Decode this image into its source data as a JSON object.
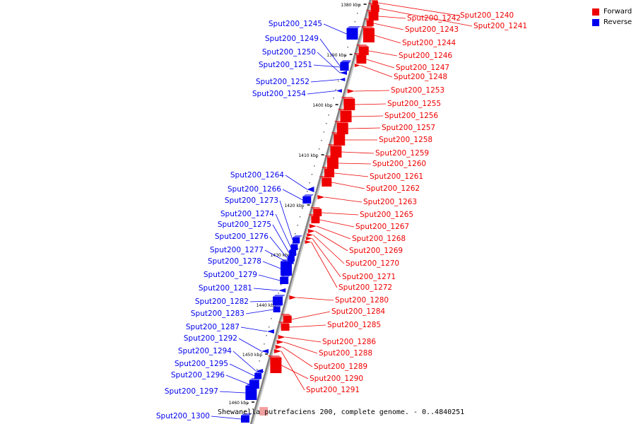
{
  "caption": "Shewanella putrefaciens 200, complete genome. - 0..4840251",
  "legend": [
    {
      "label": "Forward",
      "color": "#ee0000"
    },
    {
      "label": "Reverse",
      "color": "#0000ee"
    }
  ],
  "colors": {
    "forward": "#ee0000",
    "reverse": "#0000ee",
    "backbone": "#808080",
    "truncated": "#f4a0a0"
  },
  "ticks": [
    "1380 kbp",
    "1390 kbp",
    "1400 kbp",
    "1410 kbp",
    "1420 kbp",
    "1430 kbp",
    "1440 kbp",
    "1450 kbp",
    "1460 kbp"
  ],
  "genes": [
    {
      "label": "Sput200_1240",
      "strand": "forward"
    },
    {
      "label": "Sput200_1241",
      "strand": "forward"
    },
    {
      "label": "Sput200_1242",
      "strand": "forward"
    },
    {
      "label": "Sput200_1243",
      "strand": "forward"
    },
    {
      "label": "Sput200_1244",
      "strand": "forward"
    },
    {
      "label": "Sput200_1245",
      "strand": "reverse"
    },
    {
      "label": "Sput200_1246",
      "strand": "forward"
    },
    {
      "label": "Sput200_1247",
      "strand": "forward"
    },
    {
      "label": "Sput200_1248",
      "strand": "forward"
    },
    {
      "label": "Sput200_1249",
      "strand": "reverse"
    },
    {
      "label": "Sput200_1250",
      "strand": "reverse"
    },
    {
      "label": "Sput200_1251",
      "strand": "reverse"
    },
    {
      "label": "Sput200_1252",
      "strand": "reverse"
    },
    {
      "label": "Sput200_1253",
      "strand": "forward"
    },
    {
      "label": "Sput200_1254",
      "strand": "reverse"
    },
    {
      "label": "Sput200_1255",
      "strand": "forward"
    },
    {
      "label": "Sput200_1256",
      "strand": "forward"
    },
    {
      "label": "Sput200_1257",
      "strand": "forward"
    },
    {
      "label": "Sput200_1258",
      "strand": "forward"
    },
    {
      "label": "Sput200_1259",
      "strand": "forward"
    },
    {
      "label": "Sput200_1260",
      "strand": "forward"
    },
    {
      "label": "Sput200_1261",
      "strand": "forward"
    },
    {
      "label": "Sput200_1262",
      "strand": "forward"
    },
    {
      "label": "Sput200_1263",
      "strand": "forward"
    },
    {
      "label": "Sput200_1264",
      "strand": "reverse"
    },
    {
      "label": "Sput200_1265",
      "strand": "forward"
    },
    {
      "label": "Sput200_1266",
      "strand": "reverse"
    },
    {
      "label": "Sput200_1267",
      "strand": "forward"
    },
    {
      "label": "Sput200_1268",
      "strand": "forward"
    },
    {
      "label": "Sput200_1269",
      "strand": "forward"
    },
    {
      "label": "Sput200_1270",
      "strand": "forward"
    },
    {
      "label": "Sput200_1271",
      "strand": "forward"
    },
    {
      "label": "Sput200_1272",
      "strand": "forward"
    },
    {
      "label": "Sput200_1273",
      "strand": "reverse"
    },
    {
      "label": "Sput200_1274",
      "strand": "reverse"
    },
    {
      "label": "Sput200_1275",
      "strand": "reverse"
    },
    {
      "label": "Sput200_1276",
      "strand": "reverse"
    },
    {
      "label": "Sput200_1277",
      "strand": "reverse"
    },
    {
      "label": "Sput200_1278",
      "strand": "reverse"
    },
    {
      "label": "Sput200_1279",
      "strand": "reverse"
    },
    {
      "label": "Sput200_1280",
      "strand": "forward"
    },
    {
      "label": "Sput200_1281",
      "strand": "reverse"
    },
    {
      "label": "Sput200_1282",
      "strand": "reverse"
    },
    {
      "label": "Sput200_1283",
      "strand": "reverse"
    },
    {
      "label": "Sput200_1284",
      "strand": "forward"
    },
    {
      "label": "Sput200_1285",
      "strand": "forward"
    },
    {
      "label": "Sput200_1286",
      "strand": "forward"
    },
    {
      "label": "Sput200_1287",
      "strand": "reverse"
    },
    {
      "label": "Sput200_1288",
      "strand": "forward"
    },
    {
      "label": "Sput200_1289",
      "strand": "forward"
    },
    {
      "label": "Sput200_1290",
      "strand": "forward"
    },
    {
      "label": "Sput200_1291",
      "strand": "forward"
    },
    {
      "label": "Sput200_1292",
      "strand": "reverse"
    },
    {
      "label": "Sput200_1294",
      "strand": "reverse"
    },
    {
      "label": "Sput200_1295",
      "strand": "reverse"
    },
    {
      "label": "Sput200_1296",
      "strand": "reverse"
    },
    {
      "label": "Sput200_1297",
      "strand": "reverse"
    },
    {
      "label": "Sput200_1300",
      "strand": "reverse"
    }
  ]
}
